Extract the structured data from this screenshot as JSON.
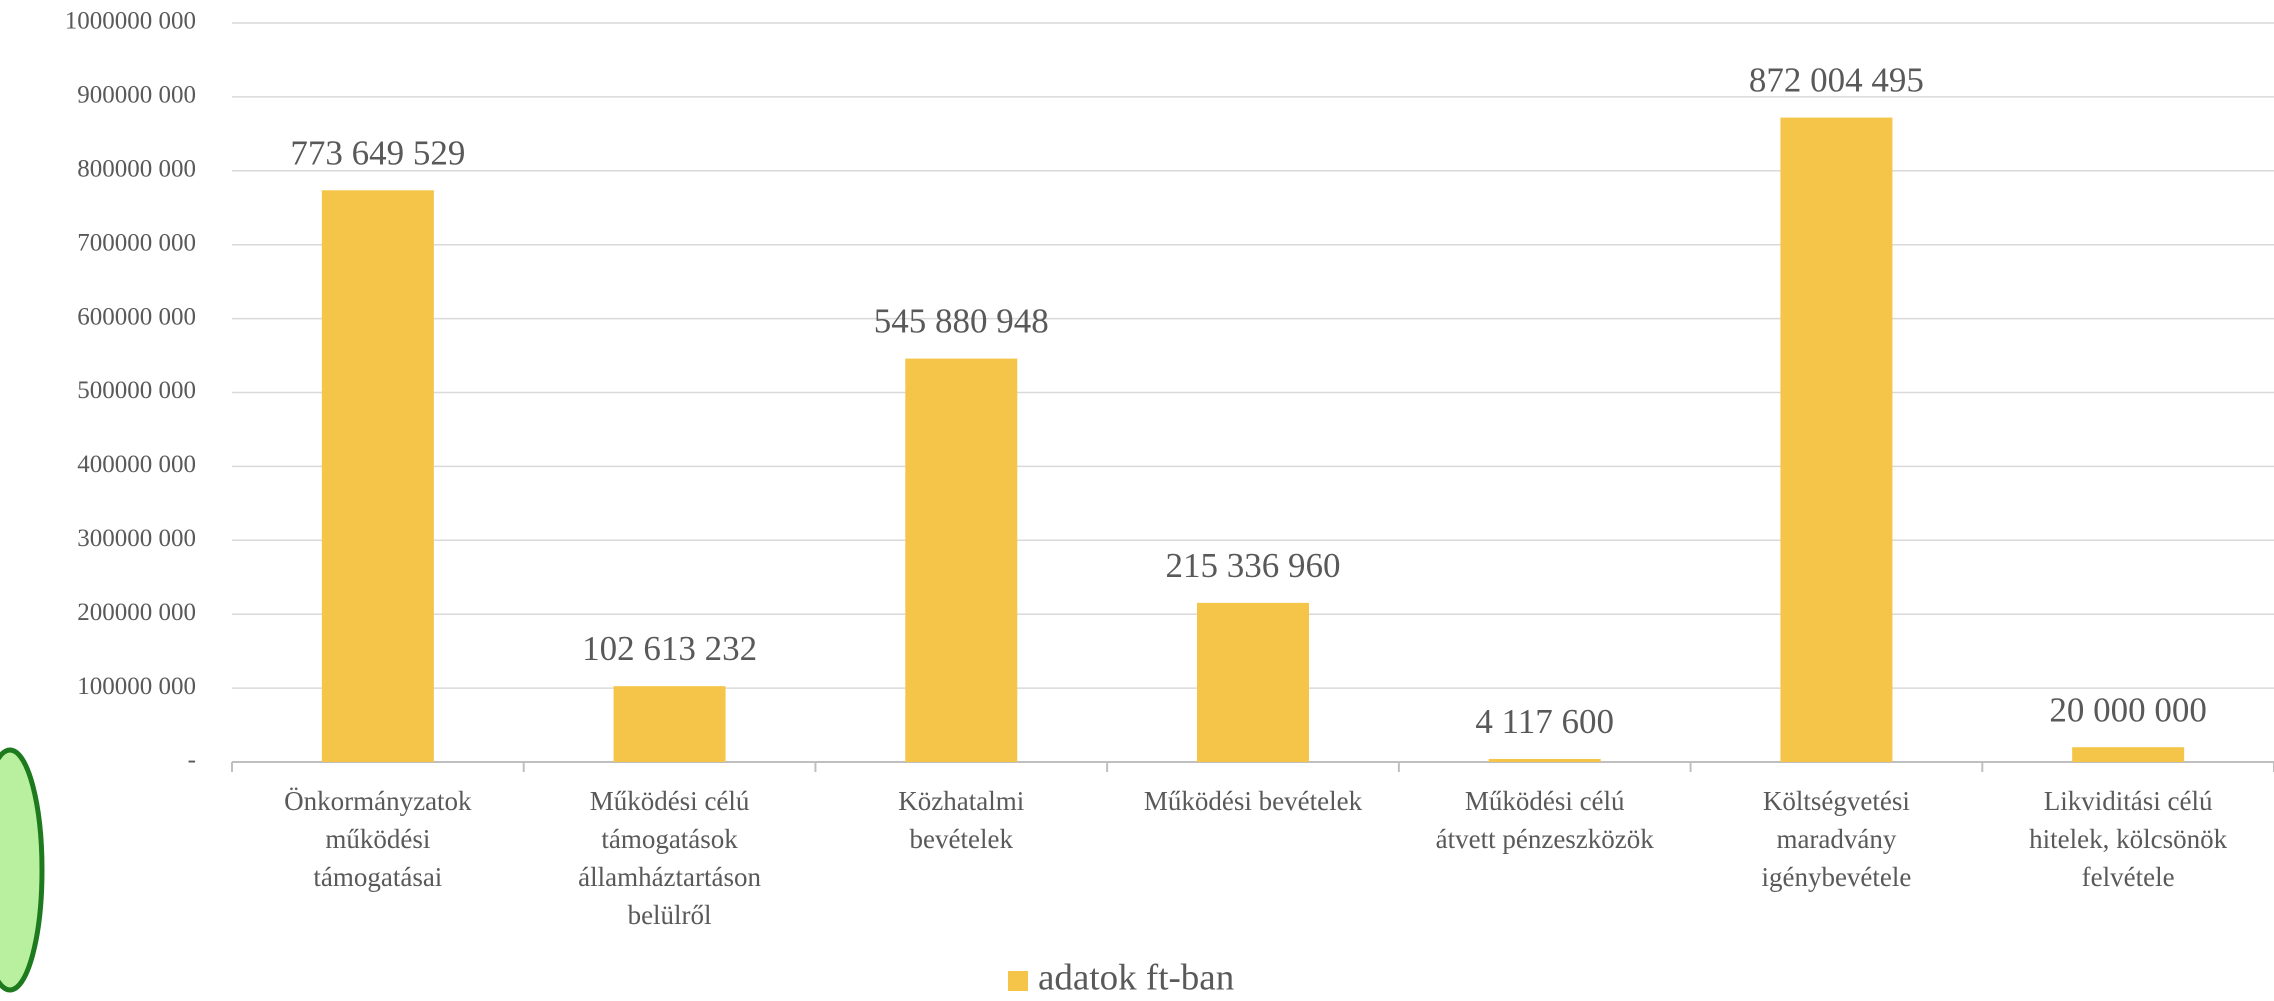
{
  "chart_data": {
    "type": "bar",
    "categories": [
      "Önkormányzatok\nműködési\ntámogatásai",
      "Működési célú\ntámogatások\nállamháztartáson\nbelülről",
      "Közhatalmi\nbevételek",
      "Működési bevételek",
      "Működési célú\nátvett pénzeszközök",
      "Költségvetési\nmaradvány\nigénybevétele",
      "Likviditási célú\nhitelek, kölcsönök\nfelvétele"
    ],
    "series": [
      {
        "name": "adatok ft-ban",
        "color": "#f5c54a",
        "values": [
          773649529,
          102613232,
          545880948,
          215336960,
          4117600,
          872004495,
          20000000
        ],
        "value_labels": [
          "773 649 529",
          "102 613 232",
          "545 880 948",
          "215 336 960",
          "4 117 600",
          "872 004 495",
          "20 000 000"
        ]
      }
    ],
    "ylim": [
      0,
      1000000000
    ],
    "yticks": [
      {
        "value": 0,
        "label": "-"
      },
      {
        "value": 100000000,
        "label": "100000 000"
      },
      {
        "value": 200000000,
        "label": "200000 000"
      },
      {
        "value": 300000000,
        "label": "300000 000"
      },
      {
        "value": 400000000,
        "label": "400000 000"
      },
      {
        "value": 500000000,
        "label": "500000 000"
      },
      {
        "value": 600000000,
        "label": "600000 000"
      },
      {
        "value": 700000000,
        "label": "700000 000"
      },
      {
        "value": 800000000,
        "label": "800000 000"
      },
      {
        "value": 900000000,
        "label": "900000 000"
      },
      {
        "value": 1000000000,
        "label": "1000000 000"
      }
    ],
    "grid": true,
    "legend": "bottom"
  }
}
